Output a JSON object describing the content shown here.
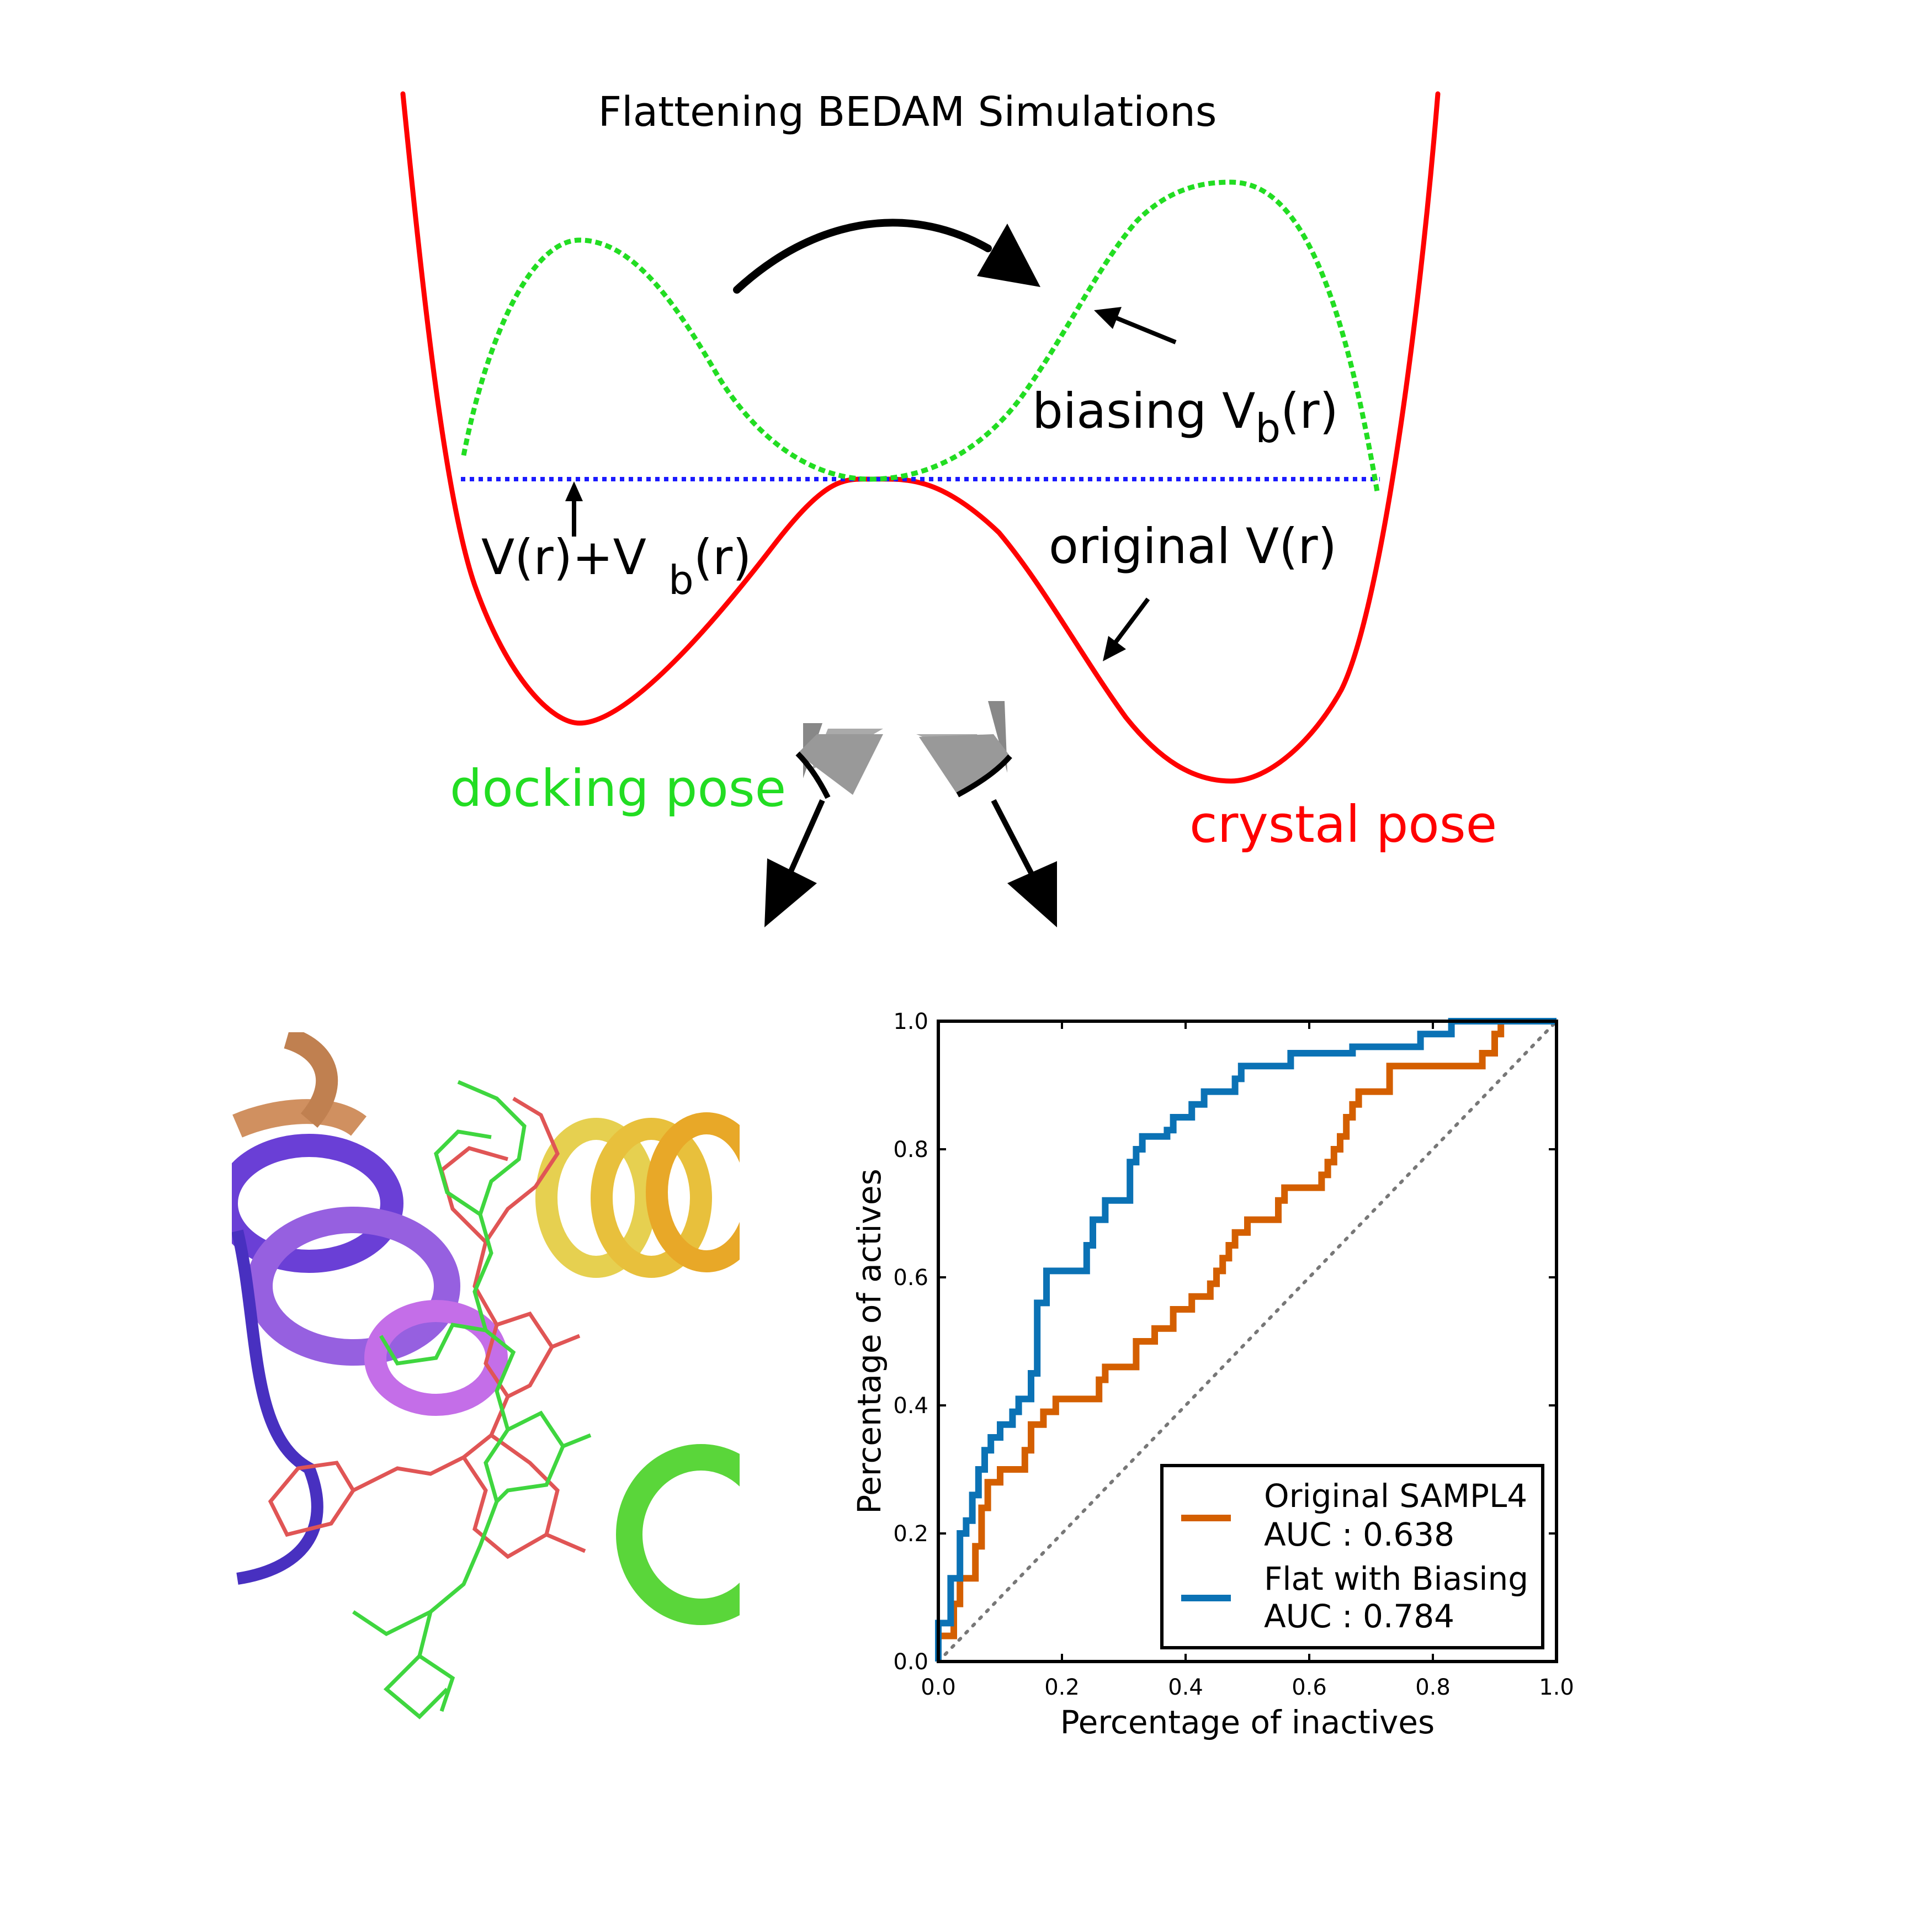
{
  "diagram": {
    "title": "Flattening BEDAM Simulations",
    "labels": {
      "biasing_main": "biasing V",
      "biasing_sub": "b",
      "biasing_tail": "(r)",
      "sum_main": "V(r)+V",
      "sum_sub": "b",
      "sum_tail": "(r)",
      "original": "original V(r)",
      "docking": "docking pose",
      "crystal": "crystal pose"
    },
    "colors": {
      "original_curve": "#ff0000",
      "biasing_curve": "#22dd22",
      "flat_line": "#1a1aff",
      "docking_text": "#22dd22",
      "crystal_text": "#ff0000",
      "arrow": "#000000"
    },
    "icons": [
      "curved-arrow-icon",
      "pointer-arrow-icon",
      "chevron-arrow-icon"
    ]
  },
  "chart_data": {
    "type": "line",
    "xlabel": "Percentage of inactives",
    "ylabel": "Percentage of actives",
    "xlim": [
      0.0,
      1.0
    ],
    "ylim": [
      0.0,
      1.0
    ],
    "xticks": [
      "0.0",
      "0.2",
      "0.4",
      "0.6",
      "0.8",
      "1.0"
    ],
    "yticks": [
      "0.0",
      "0.2",
      "0.4",
      "0.6",
      "0.8",
      "1.0"
    ],
    "grid": false,
    "legend_position": "bottom-right",
    "diagonal_reference": true,
    "series": [
      {
        "name": "Original SAMPL4",
        "auc_label": "AUC : 0.638",
        "color": "#d45f00",
        "points": [
          [
            0,
            0
          ],
          [
            0,
            0.04
          ],
          [
            0.025,
            0.04
          ],
          [
            0.025,
            0.09
          ],
          [
            0.035,
            0.09
          ],
          [
            0.035,
            0.13
          ],
          [
            0.06,
            0.13
          ],
          [
            0.06,
            0.18
          ],
          [
            0.07,
            0.18
          ],
          [
            0.07,
            0.24
          ],
          [
            0.08,
            0.24
          ],
          [
            0.08,
            0.28
          ],
          [
            0.1,
            0.28
          ],
          [
            0.1,
            0.3
          ],
          [
            0.14,
            0.3
          ],
          [
            0.14,
            0.33
          ],
          [
            0.15,
            0.33
          ],
          [
            0.15,
            0.37
          ],
          [
            0.17,
            0.37
          ],
          [
            0.17,
            0.39
          ],
          [
            0.19,
            0.39
          ],
          [
            0.19,
            0.41
          ],
          [
            0.26,
            0.41
          ],
          [
            0.26,
            0.44
          ],
          [
            0.27,
            0.44
          ],
          [
            0.27,
            0.46
          ],
          [
            0.32,
            0.46
          ],
          [
            0.32,
            0.5
          ],
          [
            0.35,
            0.5
          ],
          [
            0.35,
            0.52
          ],
          [
            0.38,
            0.52
          ],
          [
            0.38,
            0.55
          ],
          [
            0.41,
            0.55
          ],
          [
            0.41,
            0.57
          ],
          [
            0.44,
            0.57
          ],
          [
            0.44,
            0.59
          ],
          [
            0.45,
            0.59
          ],
          [
            0.45,
            0.61
          ],
          [
            0.46,
            0.61
          ],
          [
            0.46,
            0.63
          ],
          [
            0.47,
            0.63
          ],
          [
            0.47,
            0.65
          ],
          [
            0.48,
            0.65
          ],
          [
            0.48,
            0.67
          ],
          [
            0.5,
            0.67
          ],
          [
            0.5,
            0.69
          ],
          [
            0.55,
            0.69
          ],
          [
            0.55,
            0.72
          ],
          [
            0.56,
            0.72
          ],
          [
            0.56,
            0.74
          ],
          [
            0.62,
            0.74
          ],
          [
            0.62,
            0.76
          ],
          [
            0.63,
            0.76
          ],
          [
            0.63,
            0.78
          ],
          [
            0.64,
            0.78
          ],
          [
            0.64,
            0.8
          ],
          [
            0.65,
            0.8
          ],
          [
            0.65,
            0.82
          ],
          [
            0.66,
            0.82
          ],
          [
            0.66,
            0.85
          ],
          [
            0.67,
            0.85
          ],
          [
            0.67,
            0.87
          ],
          [
            0.68,
            0.87
          ],
          [
            0.68,
            0.89
          ],
          [
            0.73,
            0.89
          ],
          [
            0.73,
            0.93
          ],
          [
            0.88,
            0.93
          ],
          [
            0.88,
            0.95
          ],
          [
            0.9,
            0.95
          ],
          [
            0.9,
            0.98
          ],
          [
            0.91,
            0.98
          ],
          [
            0.91,
            1.0
          ],
          [
            0.93,
            1.0
          ]
        ]
      },
      {
        "name": "Flat with Biasing",
        "auc_label": "AUC : 0.784",
        "color": "#0b72b5",
        "points": [
          [
            0,
            0
          ],
          [
            0,
            0.06
          ],
          [
            0.02,
            0.06
          ],
          [
            0.02,
            0.13
          ],
          [
            0.035,
            0.13
          ],
          [
            0.035,
            0.2
          ],
          [
            0.045,
            0.2
          ],
          [
            0.045,
            0.22
          ],
          [
            0.055,
            0.22
          ],
          [
            0.055,
            0.26
          ],
          [
            0.065,
            0.26
          ],
          [
            0.065,
            0.3
          ],
          [
            0.075,
            0.3
          ],
          [
            0.075,
            0.33
          ],
          [
            0.085,
            0.33
          ],
          [
            0.085,
            0.35
          ],
          [
            0.1,
            0.35
          ],
          [
            0.1,
            0.37
          ],
          [
            0.12,
            0.37
          ],
          [
            0.12,
            0.39
          ],
          [
            0.13,
            0.39
          ],
          [
            0.13,
            0.41
          ],
          [
            0.15,
            0.41
          ],
          [
            0.15,
            0.45
          ],
          [
            0.16,
            0.45
          ],
          [
            0.16,
            0.56
          ],
          [
            0.175,
            0.56
          ],
          [
            0.175,
            0.61
          ],
          [
            0.24,
            0.61
          ],
          [
            0.24,
            0.65
          ],
          [
            0.25,
            0.65
          ],
          [
            0.25,
            0.69
          ],
          [
            0.27,
            0.69
          ],
          [
            0.27,
            0.72
          ],
          [
            0.31,
            0.72
          ],
          [
            0.31,
            0.78
          ],
          [
            0.32,
            0.78
          ],
          [
            0.32,
            0.8
          ],
          [
            0.33,
            0.8
          ],
          [
            0.33,
            0.82
          ],
          [
            0.37,
            0.82
          ],
          [
            0.37,
            0.83
          ],
          [
            0.38,
            0.83
          ],
          [
            0.38,
            0.85
          ],
          [
            0.41,
            0.85
          ],
          [
            0.41,
            0.87
          ],
          [
            0.43,
            0.87
          ],
          [
            0.43,
            0.89
          ],
          [
            0.48,
            0.89
          ],
          [
            0.48,
            0.91
          ],
          [
            0.49,
            0.91
          ],
          [
            0.49,
            0.93
          ],
          [
            0.57,
            0.93
          ],
          [
            0.57,
            0.95
          ],
          [
            0.67,
            0.95
          ],
          [
            0.67,
            0.96
          ],
          [
            0.78,
            0.96
          ],
          [
            0.78,
            0.98
          ],
          [
            0.83,
            0.98
          ],
          [
            0.83,
            1.0
          ],
          [
            1.0,
            1.0
          ]
        ]
      }
    ]
  }
}
